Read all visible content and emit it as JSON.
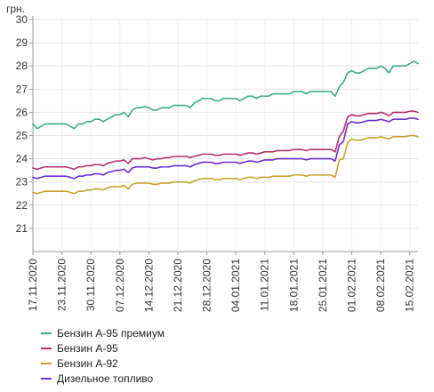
{
  "chart_data": {
    "type": "line",
    "title": "",
    "ylabel": "грн.",
    "ylim": [
      20,
      30
    ],
    "yticks": [
      21,
      22,
      23,
      24,
      25,
      26,
      27,
      28,
      29,
      30
    ],
    "x_tick_labels": [
      "17.11.2020",
      "23.11.2020",
      "30.11.2020",
      "07.12.2020",
      "14.12.2020",
      "21.12.2020",
      "28.12.2020",
      "04.01.2021",
      "11.01.2021",
      "18.01.2021",
      "25.01.2021",
      "01.02.2021",
      "08.02.2021",
      "15.02.2021"
    ],
    "x": [
      "17.11",
      "18.11",
      "19.11",
      "20.11",
      "21.11",
      "22.11",
      "23.11",
      "24.11",
      "25.11",
      "26.11",
      "27.11",
      "28.11",
      "29.11",
      "30.11",
      "01.12",
      "02.12",
      "03.12",
      "04.12",
      "05.12",
      "06.12",
      "07.12",
      "08.12",
      "09.12",
      "10.12",
      "11.12",
      "12.12",
      "13.12",
      "14.12",
      "15.12",
      "16.12",
      "17.12",
      "18.12",
      "19.12",
      "20.12",
      "21.12",
      "22.12",
      "23.12",
      "24.12",
      "25.12",
      "26.12",
      "27.12",
      "28.12",
      "29.12",
      "30.12",
      "31.12",
      "01.01",
      "02.01",
      "03.01",
      "04.01",
      "05.01",
      "06.01",
      "07.01",
      "08.01",
      "09.01",
      "10.01",
      "11.01",
      "12.01",
      "13.01",
      "14.01",
      "15.01",
      "16.01",
      "17.01",
      "18.01",
      "19.01",
      "20.01",
      "21.01",
      "22.01",
      "23.01",
      "24.01",
      "25.01",
      "26.01",
      "27.01",
      "28.01",
      "29.01",
      "30.01",
      "31.01",
      "01.02",
      "02.02",
      "03.02",
      "04.02",
      "05.02",
      "06.02",
      "07.02",
      "08.02",
      "09.02",
      "10.02",
      "11.02",
      "12.02",
      "13.02",
      "14.02",
      "15.02",
      "16.02",
      "17.02",
      "18.02"
    ],
    "series": [
      {
        "name": "Бензин А-95 премиум",
        "color": "#3fa98c",
        "values": [
          25.5,
          25.3,
          25.4,
          25.5,
          25.5,
          25.5,
          25.5,
          25.5,
          25.5,
          25.4,
          25.3,
          25.5,
          25.5,
          25.6,
          25.6,
          25.7,
          25.7,
          25.6,
          25.7,
          25.8,
          25.9,
          25.9,
          26.0,
          25.8,
          26.1,
          26.2,
          26.2,
          26.25,
          26.2,
          26.1,
          26.1,
          26.2,
          26.2,
          26.2,
          26.3,
          26.3,
          26.3,
          26.3,
          26.2,
          26.4,
          26.5,
          26.6,
          26.6,
          26.6,
          26.5,
          26.5,
          26.6,
          26.6,
          26.6,
          26.6,
          26.5,
          26.6,
          26.7,
          26.7,
          26.6,
          26.7,
          26.7,
          26.7,
          26.8,
          26.8,
          26.8,
          26.8,
          26.8,
          26.9,
          26.9,
          26.9,
          26.8,
          26.9,
          26.9,
          26.9,
          26.9,
          26.9,
          26.9,
          26.7,
          27.1,
          27.3,
          27.7,
          27.8,
          27.7,
          27.7,
          27.8,
          27.9,
          27.9,
          27.9,
          28.0,
          27.9,
          27.7,
          28.0,
          28.0,
          28.0,
          28.0,
          28.1,
          28.2,
          28.1
        ]
      },
      {
        "name": "Бензин А-95",
        "color": "#b5316b",
        "values": [
          23.6,
          23.55,
          23.6,
          23.65,
          23.65,
          23.65,
          23.65,
          23.65,
          23.65,
          23.6,
          23.55,
          23.65,
          23.65,
          23.7,
          23.7,
          23.75,
          23.75,
          23.7,
          23.8,
          23.85,
          23.9,
          23.9,
          23.95,
          23.8,
          24.0,
          24.0,
          24.0,
          24.05,
          24.0,
          23.95,
          24.0,
          24.0,
          24.05,
          24.05,
          24.1,
          24.1,
          24.1,
          24.1,
          24.05,
          24.1,
          24.15,
          24.2,
          24.2,
          24.2,
          24.15,
          24.15,
          24.2,
          24.2,
          24.2,
          24.2,
          24.15,
          24.2,
          24.25,
          24.25,
          24.2,
          24.25,
          24.3,
          24.3,
          24.3,
          24.35,
          24.35,
          24.35,
          24.35,
          24.4,
          24.4,
          24.4,
          24.35,
          24.4,
          24.4,
          24.4,
          24.4,
          24.4,
          24.4,
          24.3,
          24.95,
          25.2,
          25.8,
          25.9,
          25.85,
          25.85,
          25.9,
          25.95,
          25.95,
          25.95,
          26.0,
          25.95,
          25.85,
          26.0,
          26.0,
          26.0,
          26.0,
          26.05,
          26.05,
          26.0
        ]
      },
      {
        "name": "Бензин А-92",
        "color": "#c9a22a",
        "values": [
          22.55,
          22.5,
          22.55,
          22.6,
          22.6,
          22.6,
          22.6,
          22.6,
          22.6,
          22.55,
          22.5,
          22.6,
          22.6,
          22.65,
          22.65,
          22.7,
          22.7,
          22.65,
          22.75,
          22.8,
          22.8,
          22.8,
          22.85,
          22.7,
          22.9,
          22.95,
          22.95,
          22.95,
          22.95,
          22.9,
          22.9,
          22.95,
          22.95,
          22.95,
          23.0,
          23.0,
          23.0,
          23.0,
          22.95,
          23.05,
          23.1,
          23.15,
          23.15,
          23.15,
          23.1,
          23.1,
          23.15,
          23.15,
          23.15,
          23.15,
          23.1,
          23.15,
          23.2,
          23.2,
          23.15,
          23.2,
          23.2,
          23.2,
          23.25,
          23.25,
          23.25,
          23.25,
          23.25,
          23.3,
          23.3,
          23.3,
          23.25,
          23.3,
          23.3,
          23.3,
          23.3,
          23.3,
          23.3,
          23.2,
          23.95,
          24.0,
          24.7,
          24.85,
          24.8,
          24.8,
          24.85,
          24.9,
          24.9,
          24.9,
          24.95,
          24.9,
          24.85,
          24.95,
          24.95,
          24.95,
          24.95,
          25.0,
          25.0,
          24.95
        ]
      },
      {
        "name": "Дизельное топливо",
        "color": "#6d2bd1",
        "values": [
          23.2,
          23.15,
          23.2,
          23.25,
          23.25,
          23.25,
          23.25,
          23.25,
          23.25,
          23.2,
          23.15,
          23.25,
          23.25,
          23.3,
          23.3,
          23.35,
          23.35,
          23.3,
          23.4,
          23.45,
          23.5,
          23.5,
          23.55,
          23.4,
          23.6,
          23.65,
          23.65,
          23.65,
          23.65,
          23.6,
          23.6,
          23.65,
          23.65,
          23.65,
          23.7,
          23.7,
          23.7,
          23.7,
          23.65,
          23.75,
          23.8,
          23.85,
          23.85,
          23.85,
          23.8,
          23.8,
          23.85,
          23.85,
          23.85,
          23.85,
          23.8,
          23.85,
          23.9,
          23.9,
          23.85,
          23.9,
          23.95,
          23.95,
          23.95,
          24.0,
          24.0,
          24.0,
          24.0,
          24.0,
          24.0,
          24.0,
          23.95,
          24.0,
          24.0,
          24.0,
          24.0,
          24.0,
          24.0,
          23.9,
          24.6,
          24.75,
          25.5,
          25.6,
          25.55,
          25.55,
          25.6,
          25.65,
          25.65,
          25.65,
          25.7,
          25.65,
          25.6,
          25.7,
          25.7,
          25.7,
          25.7,
          25.75,
          25.75,
          25.7
        ]
      }
    ],
    "grid": true,
    "legend_position": "bottom-left"
  }
}
